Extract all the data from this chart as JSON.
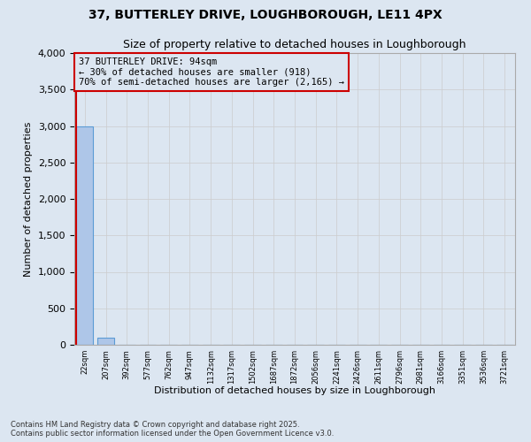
{
  "title1": "37, BUTTERLEY DRIVE, LOUGHBOROUGH, LE11 4PX",
  "title2": "Size of property relative to detached houses in Loughborough",
  "xlabel": "Distribution of detached houses by size in Loughborough",
  "ylabel": "Number of detached properties",
  "categories": [
    "22sqm",
    "207sqm",
    "392sqm",
    "577sqm",
    "762sqm",
    "947sqm",
    "1132sqm",
    "1317sqm",
    "1502sqm",
    "1687sqm",
    "1872sqm",
    "2056sqm",
    "2241sqm",
    "2426sqm",
    "2611sqm",
    "2796sqm",
    "2981sqm",
    "3166sqm",
    "3351sqm",
    "3536sqm",
    "3721sqm"
  ],
  "values": [
    3000,
    100,
    2,
    1,
    1,
    0,
    0,
    0,
    0,
    0,
    0,
    0,
    0,
    0,
    0,
    0,
    0,
    0,
    0,
    0,
    0
  ],
  "bar_color": "#aec6e8",
  "bar_edge_color": "#5b9bd5",
  "grid_color": "#cccccc",
  "bg_color": "#dce6f1",
  "annotation_text": "37 BUTTERLEY DRIVE: 94sqm\n← 30% of detached houses are smaller (918)\n70% of semi-detached houses are larger (2,165) →",
  "annotation_box_color": "#cc0000",
  "vline_color": "#cc0000",
  "ylim": [
    0,
    4000
  ],
  "yticks": [
    0,
    500,
    1000,
    1500,
    2000,
    2500,
    3000,
    3500,
    4000
  ],
  "footer1": "Contains HM Land Registry data © Crown copyright and database right 2025.",
  "footer2": "Contains public sector information licensed under the Open Government Licence v3.0.",
  "figsize": [
    6.0,
    5.0
  ],
  "dpi": 100
}
